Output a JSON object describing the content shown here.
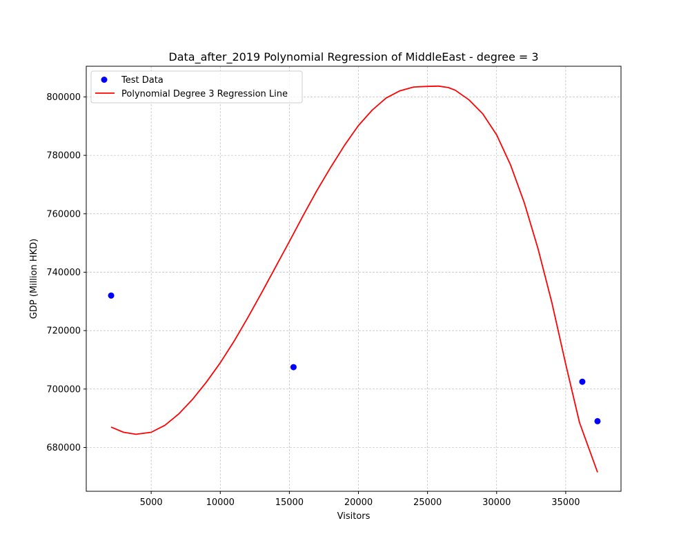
{
  "chart_data": {
    "type": "scatter",
    "title": "Data_after_2019 Polynomial Regression of MiddleEast - degree = 3",
    "xlabel": "Visitors",
    "ylabel": "GDP (Million HKD)",
    "xlim": [
      300,
      39000
    ],
    "ylim": [
      665000,
      810500
    ],
    "xticks": [
      5000,
      10000,
      15000,
      20000,
      25000,
      30000,
      35000
    ],
    "yticks": [
      680000,
      700000,
      720000,
      740000,
      760000,
      780000,
      800000
    ],
    "grid": true,
    "legend_position": "upper-left",
    "series": [
      {
        "name": "Test Data",
        "kind": "scatter",
        "color": "#0000ff",
        "points": [
          {
            "x": 2100,
            "y": 732000
          },
          {
            "x": 15300,
            "y": 707500
          },
          {
            "x": 36200,
            "y": 702500
          },
          {
            "x": 37300,
            "y": 689000
          }
        ]
      },
      {
        "name": "Polynomial Degree 3 Regression Line",
        "kind": "line",
        "color": "#ff0000",
        "x": [
          2100,
          3000,
          3900,
          5000,
          6000,
          7000,
          8000,
          9000,
          10000,
          11000,
          12000,
          13000,
          14000,
          15000,
          16000,
          17000,
          18000,
          19000,
          20000,
          21000,
          22000,
          23000,
          24000,
          25000,
          25800,
          26500,
          27000,
          28000,
          29000,
          30000,
          31000,
          32000,
          33000,
          34000,
          35000,
          36000,
          37300
        ],
        "y": [
          687000,
          685200,
          684500,
          685200,
          687600,
          691500,
          696500,
          702400,
          709000,
          716400,
          724500,
          733000,
          741800,
          750500,
          759400,
          768000,
          776000,
          783500,
          790200,
          795500,
          799600,
          802100,
          803400,
          803600,
          803700,
          803200,
          802300,
          799000,
          794200,
          787000,
          776800,
          763800,
          748000,
          729500,
          708500,
          688500,
          671500
        ]
      }
    ]
  }
}
